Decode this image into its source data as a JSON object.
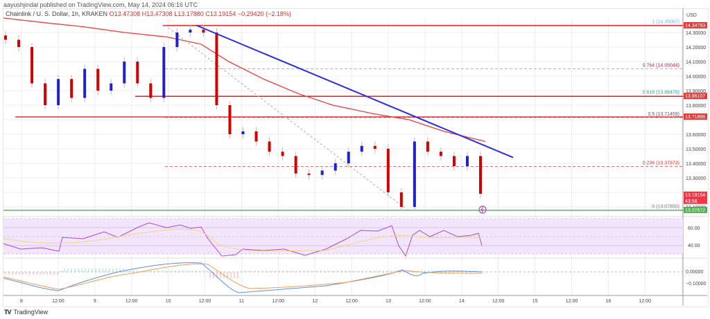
{
  "header": {
    "published": "aayushjindal published on TradingView.com, May 14, 2024 06:16 UTC",
    "symbol": "Chainlink / U. S. Dollar, 1h, KRAKEN",
    "open": "O13.47308",
    "high": "H13.47308",
    "low": "L13.17880",
    "close": "C13.19154",
    "change": "−0.29420 (−2.18%)"
  },
  "price_axis": {
    "currency": "USD",
    "ticks": [
      "14.30000",
      "14.20000",
      "14.10000",
      "14.00000",
      "13.90000",
      "13.80000",
      "13.60000",
      "13.50000",
      "13.40000",
      "13.30000",
      "13.10000"
    ],
    "tags": [
      {
        "value": "14.34793",
        "color": "#e53935"
      },
      {
        "value": "13.86107",
        "color": "#e53935"
      },
      {
        "value": "13.71896",
        "color": "#e53935"
      },
      {
        "value": "13.19154",
        "sub": "43:56",
        "color": "#f23645"
      },
      {
        "value": "13.07672",
        "color": "#4caf50"
      }
    ]
  },
  "fib_levels": [
    {
      "ratio": "1",
      "label": "1 (14.35067)",
      "color": "#64b5f6"
    },
    {
      "ratio": "0.764",
      "label": "0.764 (14.05044)",
      "color": "#c2185b"
    },
    {
      "ratio": "0.618",
      "label": "0.618 (13.86470)",
      "color": "#26a69a"
    },
    {
      "ratio": "0.5",
      "label": "0.5 (13.71459)",
      "color": "#555555"
    },
    {
      "ratio": "0.236",
      "label": "0.236 (13.37873)",
      "color": "#e53935"
    },
    {
      "ratio": "0",
      "label": "0 (13.07850)",
      "color": "#777777"
    }
  ],
  "rsi_axis": {
    "ticks": [
      "60.00",
      "40.00"
    ]
  },
  "macd_axis": {
    "ticks": [
      "0.00000",
      "−0.10000"
    ]
  },
  "time_axis": {
    "ticks": [
      "8",
      "12:00",
      "9",
      "12:00",
      "10",
      "12:00",
      "11",
      "12:00",
      "12",
      "12:00",
      "13",
      "12:00",
      "14",
      "12:00",
      "15",
      "12:00",
      "16",
      "12:00"
    ]
  },
  "footer": {
    "logo": "TV",
    "brand": "TradingView"
  },
  "colors": {
    "up": "#1e22c8",
    "down": "#d50000",
    "ma": "#ef3b3b",
    "trendline": "#2a2ee0",
    "rsi": "#a64dc4",
    "rsi_ma": "#f5d57a",
    "macd": "#5b8def",
    "signal": "#f39c4a",
    "support": "#43a047"
  },
  "chart_data": {
    "type": "candlestick",
    "title": "Chainlink / U. S. Dollar, 1h, KRAKEN",
    "xlabel": "",
    "ylabel": "USD",
    "ylim": [
      13.05,
      14.4
    ],
    "x_ticks": [
      "8",
      "12:00",
      "9",
      "12:00",
      "10",
      "12:00",
      "11",
      "12:00",
      "12",
      "12:00",
      "13",
      "12:00",
      "14",
      "12:00",
      "15",
      "12:00",
      "16",
      "12:00"
    ],
    "horizontal_levels": [
      14.34793,
      13.86107,
      13.71896,
      13.07672
    ],
    "last_price": 13.19154,
    "ohlc_last": {
      "open": 13.47308,
      "high": 13.47308,
      "low": 13.1788,
      "close": 13.19154,
      "change": -0.2942,
      "change_pct": -2.18
    },
    "fibonacci": [
      {
        "ratio": 1,
        "price": 14.35067
      },
      {
        "ratio": 0.764,
        "price": 14.05044
      },
      {
        "ratio": 0.618,
        "price": 13.8647
      },
      {
        "ratio": 0.5,
        "price": 13.71459
      },
      {
        "ratio": 0.236,
        "price": 13.37873
      },
      {
        "ratio": 0,
        "price": 13.0785
      }
    ],
    "trendline": {
      "from": {
        "x": "10 ~06:00",
        "price": 14.35
      },
      "to": {
        "x": "14 ~18:00",
        "price": 13.44
      }
    },
    "moving_average_approx": [
      14.4,
      14.37,
      14.34,
      14.3,
      14.27,
      14.22,
      14.1,
      13.98,
      13.88,
      13.8,
      13.74,
      13.7,
      13.62,
      13.55
    ],
    "close_series_approx": [
      14.25,
      14.2,
      13.95,
      13.8,
      13.98,
      13.85,
      14.05,
      13.9,
      13.95,
      14.1,
      13.95,
      13.85,
      14.2,
      14.3,
      14.32,
      14.3,
      13.8,
      13.6,
      13.62,
      13.55,
      13.48,
      13.45,
      13.33,
      13.32,
      13.35,
      13.4,
      13.48,
      13.52,
      13.5,
      13.2,
      13.1,
      13.55,
      13.48,
      13.45,
      13.38,
      13.45,
      13.19
    ],
    "rsi": {
      "ylim": [
        20,
        80
      ],
      "bands": [
        30,
        70
      ],
      "ticks": [
        60,
        40
      ],
      "last": 38
    },
    "macd": {
      "ticks": [
        0.0,
        -0.1
      ],
      "last": -0.01
    }
  }
}
